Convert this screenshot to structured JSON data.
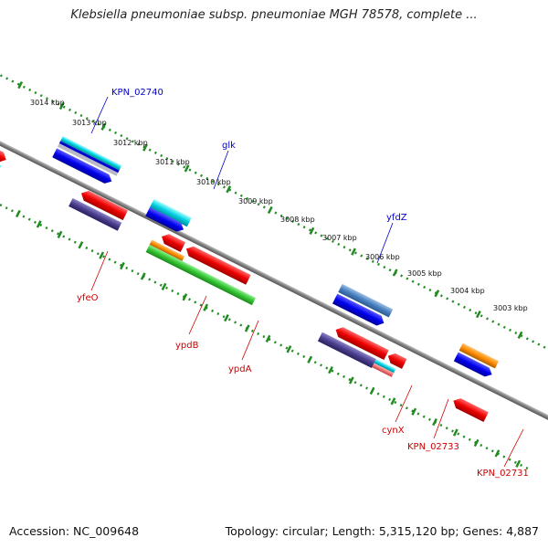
{
  "title": "Klebsiella pneumoniae subsp. pneumoniae MGH 78578, complete ...",
  "footer": {
    "accession": "Accession: NC_009648",
    "summary": "Topology: circular; Length: 5,315,120 bp; Genes: 4,887"
  },
  "colors": {
    "backbone": "#808080",
    "dots": "#228B22",
    "label_blue": "#0000CC",
    "label_red": "#CC0000"
  },
  "ticks": [
    "3014 kbp",
    "3013 kbp",
    "3012 kbp",
    "3011 kbp",
    "3010 kbp",
    "3009 kbp",
    "3008 kbp",
    "3007 kbp",
    "3006 kbp",
    "3005 kbp",
    "3004 kbp",
    "3003 kbp"
  ],
  "gene_labels": {
    "KPN_02740": "KPN_02740",
    "glk": "glk",
    "yfdZ": "yfdZ",
    "yfeO": "yfeO",
    "ypdB": "ypdB",
    "ypdA": "ypdA",
    "cynX": "cynX",
    "KPN_02733": "KPN_02733",
    "KPN_02731": "KPN_02731"
  }
}
